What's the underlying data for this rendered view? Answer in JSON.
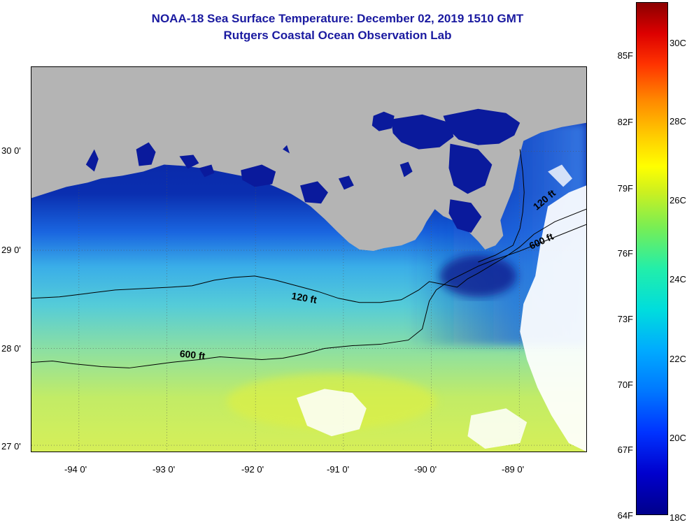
{
  "title": {
    "line1": "NOAA-18 Sea Surface Temperature:  December 02, 2019 1510 GMT",
    "line2": "Rutgers Coastal Ocean Observation Lab"
  },
  "map": {
    "lat_labels": [
      "30 0'",
      "29 0'",
      "28 0'",
      "27 0'"
    ],
    "lon_labels": [
      "-94 0'",
      "-93 0'",
      "-92 0'",
      "-91 0'",
      "-90 0'",
      "-89 0'"
    ],
    "contours": [
      "120 ft",
      "600 ft",
      "120 ft",
      "600 ft"
    ],
    "colors": {
      "land": "#b4b4b4",
      "cloud": "#ffffff",
      "contour": "#000000"
    }
  },
  "colorbar": {
    "fahrenheit": [
      "85F",
      "82F",
      "79F",
      "76F",
      "73F",
      "70F",
      "67F",
      "64F"
    ],
    "celsius": [
      "30C",
      "28C",
      "26C",
      "24C",
      "22C",
      "20C",
      "18C"
    ]
  }
}
